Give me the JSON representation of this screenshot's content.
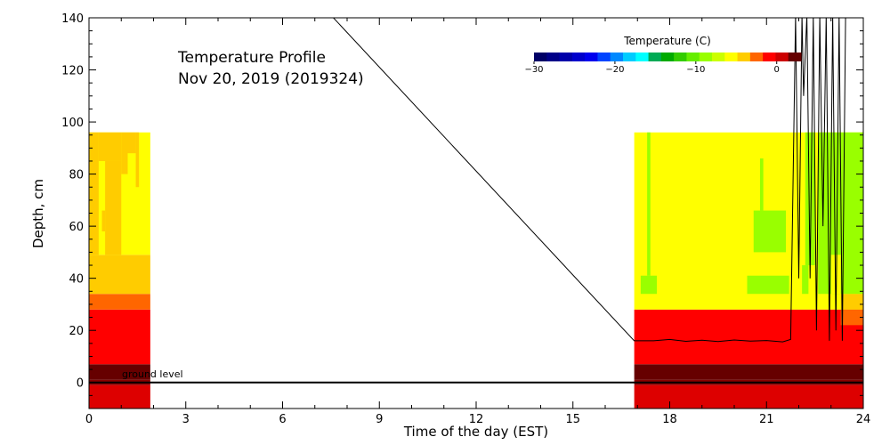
{
  "chart_data": {
    "type": "heatmap",
    "title": "Temperature Profile",
    "subtitle": "Nov 20, 2019 (2019324)",
    "xlabel": "Time of the day (EST)",
    "ylabel": "Depth, cm",
    "xlim": [
      0,
      24
    ],
    "ylim": [
      -10,
      140
    ],
    "xticks": [
      0,
      3,
      6,
      9,
      12,
      15,
      18,
      21,
      24
    ],
    "yticks": [
      0,
      20,
      40,
      60,
      80,
      100,
      120,
      140
    ],
    "annotation": "ground level",
    "ground_level": 0,
    "colorbar": {
      "label": "Temperature (C)",
      "range": [
        -30,
        3
      ],
      "ticks": [
        -30,
        -20,
        -10,
        0
      ],
      "colors": [
        "#000066",
        "#000088",
        "#0000aa",
        "#0000cc",
        "#0000ee",
        "#0044ff",
        "#0088ff",
        "#00ccff",
        "#00ffff",
        "#00aa55",
        "#00aa00",
        "#33cc00",
        "#66ee00",
        "#99ff00",
        "#ccff00",
        "#ffff00",
        "#ffcc00",
        "#ff6600",
        "#ff0000",
        "#cc0000",
        "#660000"
      ]
    },
    "cells": [
      {
        "x": [
          0,
          1.9
        ],
        "y": [
          -10,
          -1
        ],
        "color": "#dd0000"
      },
      {
        "x": [
          0,
          1.9
        ],
        "y": [
          -1,
          1
        ],
        "color": "#880000"
      },
      {
        "x": [
          0,
          1.9
        ],
        "y": [
          1,
          7
        ],
        "color": "#660000"
      },
      {
        "x": [
          0,
          1.9
        ],
        "y": [
          7,
          28
        ],
        "color": "#ff0000"
      },
      {
        "x": [
          0,
          1.9
        ],
        "y": [
          28,
          34
        ],
        "color": "#ff6600"
      },
      {
        "x": [
          0,
          1.9
        ],
        "y": [
          34,
          49
        ],
        "color": "#ffcc00"
      },
      {
        "x": [
          0,
          1.9
        ],
        "y": [
          49,
          96
        ],
        "color": "#ffff00"
      },
      {
        "x": [
          0,
          0.3
        ],
        "y": [
          49,
          96
        ],
        "color": "#ffcc00"
      },
      {
        "x": [
          0.3,
          1.0
        ],
        "y": [
          85,
          96
        ],
        "color": "#ffcc00"
      },
      {
        "x": [
          0.4,
          0.5
        ],
        "y": [
          58,
          66
        ],
        "color": "#ffcc00"
      },
      {
        "x": [
          0.5,
          1.0
        ],
        "y": [
          49,
          85
        ],
        "color": "#ffcc00"
      },
      {
        "x": [
          1.0,
          1.2
        ],
        "y": [
          80,
          96
        ],
        "color": "#ffcc00"
      },
      {
        "x": [
          1.2,
          1.45
        ],
        "y": [
          88,
          96
        ],
        "color": "#ffcc00"
      },
      {
        "x": [
          1.45,
          1.55
        ],
        "y": [
          75,
          96
        ],
        "color": "#ffcc00"
      },
      {
        "x": [
          16.9,
          24
        ],
        "y": [
          -10,
          -1
        ],
        "color": "#dd0000"
      },
      {
        "x": [
          16.9,
          24
        ],
        "y": [
          -1,
          1
        ],
        "color": "#880000"
      },
      {
        "x": [
          16.9,
          24
        ],
        "y": [
          1,
          7
        ],
        "color": "#660000"
      },
      {
        "x": [
          16.9,
          24
        ],
        "y": [
          7,
          28
        ],
        "color": "#ff0000"
      },
      {
        "x": [
          16.9,
          24
        ],
        "y": [
          28,
          96
        ],
        "color": "#ffff00"
      },
      {
        "x": [
          23.3,
          24
        ],
        "y": [
          22,
          28
        ],
        "color": "#ff6600"
      },
      {
        "x": [
          23.3,
          24
        ],
        "y": [
          28,
          34
        ],
        "color": "#ffcc00"
      },
      {
        "x": [
          17.1,
          17.6
        ],
        "y": [
          34,
          41
        ],
        "color": "#99ff00"
      },
      {
        "x": [
          17.3,
          17.4
        ],
        "y": [
          41,
          96
        ],
        "color": "#99ff00"
      },
      {
        "x": [
          20.4,
          21.7
        ],
        "y": [
          34,
          41
        ],
        "color": "#99ff00"
      },
      {
        "x": [
          20.6,
          21.6
        ],
        "y": [
          50,
          66
        ],
        "color": "#99ff00"
      },
      {
        "x": [
          20.8,
          20.9
        ],
        "y": [
          66,
          86
        ],
        "color": "#99ff00"
      },
      {
        "x": [
          22.1,
          22.3
        ],
        "y": [
          34,
          45
        ],
        "color": "#99ff00"
      },
      {
        "x": [
          22.2,
          22.5
        ],
        "y": [
          45,
          96
        ],
        "color": "#99ff00"
      },
      {
        "x": [
          22.6,
          24
        ],
        "y": [
          34,
          96
        ],
        "color": "#99ff00"
      },
      {
        "x": [
          23.0,
          23.3
        ],
        "y": [
          34,
          49
        ],
        "color": "#ffff00"
      }
    ],
    "line": {
      "x": [
        7.5,
        16.9,
        17.5,
        18.0,
        18.5,
        19.0,
        19.5,
        20.0,
        20.5,
        21.0,
        21.5,
        21.75,
        21.9,
        22.0,
        22.1,
        22.15,
        22.25,
        22.35,
        22.45,
        22.55,
        22.65,
        22.75,
        22.85,
        22.95,
        23.05,
        23.15,
        23.25,
        23.35,
        23.45
      ],
      "y": [
        141,
        16,
        16,
        16.5,
        15.8,
        16.2,
        15.7,
        16.3,
        15.9,
        16.1,
        15.6,
        16.5,
        141,
        40,
        141,
        110,
        141,
        40,
        141,
        20,
        141,
        60,
        141,
        16,
        141,
        20,
        141,
        16,
        141
      ]
    }
  }
}
